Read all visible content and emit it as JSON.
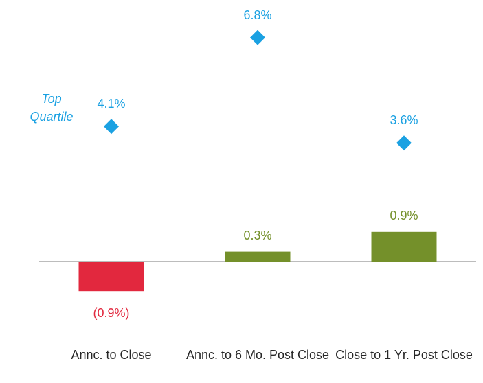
{
  "chart_data": {
    "type": "bar",
    "categories": [
      "Annc. to Close",
      "Annc. to 6 Mo. Post Close",
      "Close to 1 Yr. Post Close"
    ],
    "series": [
      {
        "values": [
          -0.9,
          0.3,
          0.9
        ],
        "value_labels": [
          "(0.9%)",
          "0.3%",
          "0.9%"
        ],
        "colors": [
          "#e2283e",
          "#74902a",
          "#74902a"
        ]
      },
      {
        "name": "Top Quartile",
        "type": "scatter",
        "marker": "diamond",
        "color": "#1ba1e2",
        "values": [
          4.1,
          6.8,
          3.6
        ],
        "value_labels": [
          "4.1%",
          "6.8%",
          "3.6%"
        ]
      }
    ]
  }
}
